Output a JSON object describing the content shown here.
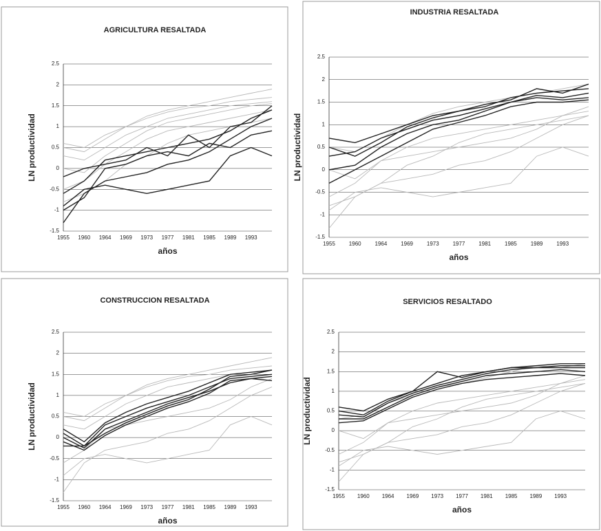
{
  "chart_data": [
    {
      "type": "line",
      "title": "AGRICULTURA RESALTADA",
      "ylabel": "LN productividad",
      "xlabel": "años",
      "categories": [
        "1955",
        "1960",
        "1964",
        "1969",
        "1973",
        "1977",
        "1981",
        "1985",
        "1989",
        "1993",
        null
      ],
      "ylim": [
        -1.5,
        2.5
      ],
      "yticks": [
        -1.5,
        -1,
        -0.5,
        0,
        0.5,
        1,
        1.5,
        2,
        2.5
      ],
      "grid": true,
      "series": [
        {
          "color": "#b8b8b8",
          "values": [
            0.6,
            0.5,
            0.8,
            1.0,
            1.2,
            1.35,
            1.45,
            1.5,
            1.6,
            1.65,
            1.7
          ]
        },
        {
          "color": "#b8b8b8",
          "values": [
            0.3,
            0.2,
            0.5,
            0.8,
            1.0,
            1.2,
            1.3,
            1.4,
            1.5,
            1.55,
            1.6
          ]
        },
        {
          "color": "#b8b8b8",
          "values": [
            0.0,
            -0.1,
            0.3,
            0.6,
            0.9,
            1.1,
            1.2,
            1.3,
            1.4,
            1.5,
            1.55
          ]
        },
        {
          "color": "#b8b8b8",
          "values": [
            -0.5,
            -0.3,
            0.1,
            0.4,
            0.7,
            0.9,
            1.0,
            1.1,
            1.2,
            1.3,
            1.4
          ]
        },
        {
          "color": "#b8b8b8",
          "values": [
            0.5,
            0.4,
            0.7,
            1.0,
            1.25,
            1.4,
            1.5,
            1.6,
            1.7,
            1.8,
            1.9
          ]
        },
        {
          "color": "#b8b8b8",
          "values": [
            -0.8,
            -0.6,
            -0.3,
            0.1,
            0.3,
            0.6,
            0.8,
            0.9,
            1.0,
            1.1,
            1.2
          ]
        },
        {
          "color": "#222222",
          "values": [
            -1.3,
            -0.6,
            -0.3,
            -0.2,
            -0.1,
            0.1,
            0.2,
            0.4,
            0.7,
            1.0,
            1.2
          ]
        },
        {
          "color": "#222222",
          "values": [
            -0.6,
            -0.3,
            0.2,
            0.3,
            0.4,
            0.5,
            0.6,
            0.7,
            0.9,
            1.2,
            1.4
          ]
        },
        {
          "color": "#222222",
          "values": [
            -0.9,
            -0.5,
            -0.4,
            -0.5,
            -0.6,
            -0.5,
            -0.4,
            -0.3,
            0.3,
            0.5,
            0.3
          ]
        },
        {
          "color": "#222222",
          "values": [
            -0.2,
            0.0,
            0.1,
            0.2,
            0.5,
            0.3,
            0.8,
            0.5,
            1.0,
            1.1,
            1.5
          ]
        },
        {
          "color": "#222222",
          "values": [
            -1.0,
            -0.7,
            0.0,
            0.1,
            0.3,
            0.4,
            0.3,
            0.6,
            0.5,
            0.8,
            0.9
          ]
        }
      ]
    },
    {
      "type": "line",
      "title": "INDUSTRIA RESALTADA",
      "ylabel": "LN productividad",
      "xlabel": "años",
      "categories": [
        "1955",
        "1960",
        "1964",
        "1969",
        "1973",
        "1977",
        "1981",
        "1985",
        "1989",
        "1993",
        null
      ],
      "ylim": [
        -1.5,
        2.5
      ],
      "yticks": [
        -1.5,
        -1,
        -0.5,
        0,
        0.5,
        1,
        1.5,
        2,
        2.5
      ],
      "grid": true,
      "series": [
        {
          "color": "#b8b8b8",
          "values": [
            -1.3,
            -0.6,
            -0.3,
            -0.2,
            -0.1,
            0.1,
            0.2,
            0.4,
            0.7,
            1.0,
            1.2
          ]
        },
        {
          "color": "#b8b8b8",
          "values": [
            -0.6,
            -0.3,
            0.2,
            0.3,
            0.4,
            0.5,
            0.6,
            0.7,
            0.9,
            1.2,
            1.4
          ]
        },
        {
          "color": "#b8b8b8",
          "values": [
            -0.9,
            -0.5,
            -0.4,
            -0.5,
            -0.6,
            -0.5,
            -0.4,
            -0.3,
            0.3,
            0.5,
            0.3
          ]
        },
        {
          "color": "#b8b8b8",
          "values": [
            0.5,
            0.4,
            0.7,
            1.0,
            1.25,
            1.4,
            1.5,
            1.6,
            1.7,
            1.8,
            1.9
          ]
        },
        {
          "color": "#b8b8b8",
          "values": [
            0.0,
            -0.2,
            0.2,
            0.5,
            0.7,
            0.8,
            0.9,
            1.0,
            1.1,
            1.2,
            1.3
          ]
        },
        {
          "color": "#b8b8b8",
          "values": [
            -0.8,
            -0.6,
            -0.3,
            0.1,
            0.3,
            0.6,
            0.8,
            0.9,
            1.0,
            1.1,
            1.2
          ]
        },
        {
          "color": "#222222",
          "values": [
            0.7,
            0.6,
            0.8,
            1.0,
            1.2,
            1.3,
            1.4,
            1.6,
            1.7,
            1.75,
            1.8
          ]
        },
        {
          "color": "#222222",
          "values": [
            0.3,
            0.4,
            0.7,
            0.9,
            1.1,
            1.2,
            1.35,
            1.5,
            1.65,
            1.6,
            1.7
          ]
        },
        {
          "color": "#222222",
          "values": [
            0.0,
            0.1,
            0.5,
            0.8,
            1.0,
            1.1,
            1.3,
            1.5,
            1.6,
            1.55,
            1.6
          ]
        },
        {
          "color": "#222222",
          "values": [
            -0.3,
            0.0,
            0.3,
            0.6,
            0.9,
            1.05,
            1.2,
            1.4,
            1.5,
            1.5,
            1.55
          ]
        },
        {
          "color": "#222222",
          "values": [
            0.5,
            0.3,
            0.6,
            0.95,
            1.15,
            1.3,
            1.45,
            1.55,
            1.8,
            1.7,
            1.9
          ]
        }
      ]
    },
    {
      "type": "line",
      "title": "CONSTRUCCION RESALTADA",
      "ylabel": "LN productividad",
      "xlabel": "años",
      "categories": [
        "1955",
        "1960",
        "1964",
        "1969",
        "1973",
        "1977",
        "1981",
        "1985",
        "1989",
        "1993",
        null
      ],
      "ylim": [
        -1.5,
        2.5
      ],
      "yticks": [
        -1.5,
        -1,
        -0.5,
        0,
        0.5,
        1,
        1.5,
        2,
        2.5
      ],
      "grid": true,
      "series": [
        {
          "color": "#b8b8b8",
          "values": [
            0.6,
            0.5,
            0.8,
            1.0,
            1.2,
            1.35,
            1.45,
            1.5,
            1.6,
            1.65,
            1.7
          ]
        },
        {
          "color": "#b8b8b8",
          "values": [
            -1.3,
            -0.6,
            -0.3,
            -0.2,
            -0.1,
            0.1,
            0.2,
            0.4,
            0.7,
            1.0,
            1.2
          ]
        },
        {
          "color": "#b8b8b8",
          "values": [
            -0.9,
            -0.5,
            -0.4,
            -0.5,
            -0.6,
            -0.5,
            -0.4,
            -0.3,
            0.3,
            0.5,
            0.3
          ]
        },
        {
          "color": "#b8b8b8",
          "values": [
            0.5,
            0.4,
            0.7,
            1.0,
            1.25,
            1.4,
            1.5,
            1.6,
            1.7,
            1.8,
            1.9
          ]
        },
        {
          "color": "#b8b8b8",
          "values": [
            0.3,
            0.2,
            0.5,
            0.8,
            1.0,
            1.2,
            1.3,
            1.4,
            1.5,
            1.55,
            1.6
          ]
        },
        {
          "color": "#b8b8b8",
          "values": [
            -0.6,
            -0.3,
            0.2,
            0.3,
            0.4,
            0.5,
            0.6,
            0.7,
            0.9,
            1.2,
            1.4
          ]
        },
        {
          "color": "#222222",
          "values": [
            0.1,
            -0.2,
            0.3,
            0.5,
            0.7,
            0.85,
            1.0,
            1.2,
            1.4,
            1.45,
            1.5
          ]
        },
        {
          "color": "#222222",
          "values": [
            0.0,
            -0.25,
            0.2,
            0.4,
            0.6,
            0.8,
            0.95,
            1.1,
            1.3,
            1.4,
            1.45
          ]
        },
        {
          "color": "#222222",
          "values": [
            -0.2,
            -0.2,
            0.1,
            0.35,
            0.55,
            0.75,
            0.9,
            1.15,
            1.45,
            1.5,
            1.6
          ]
        },
        {
          "color": "#222222",
          "values": [
            0.2,
            -0.1,
            0.35,
            0.6,
            0.8,
            0.95,
            1.1,
            1.3,
            1.5,
            1.55,
            1.6
          ]
        },
        {
          "color": "#222222",
          "values": [
            -0.1,
            -0.3,
            0.05,
            0.3,
            0.5,
            0.7,
            0.85,
            1.05,
            1.35,
            1.4,
            1.35
          ]
        }
      ]
    },
    {
      "type": "line",
      "title": "SERVICIOS RESALTADO",
      "ylabel": "LN productividad",
      "xlabel": "años",
      "categories": [
        "1955",
        "1960",
        "1964",
        "1969",
        "1973",
        "1977",
        "1981",
        "1985",
        "1989",
        "1993",
        null
      ],
      "ylim": [
        -1.5,
        2.5
      ],
      "yticks": [
        -1.5,
        -1,
        -0.5,
        0,
        0.5,
        1,
        1.5,
        2,
        2.5
      ],
      "grid": true,
      "series": [
        {
          "color": "#b8b8b8",
          "values": [
            -1.3,
            -0.6,
            -0.3,
            -0.2,
            -0.1,
            0.1,
            0.2,
            0.4,
            0.7,
            1.0,
            1.2
          ]
        },
        {
          "color": "#b8b8b8",
          "values": [
            -0.6,
            -0.3,
            0.2,
            0.3,
            0.4,
            0.5,
            0.6,
            0.7,
            0.9,
            1.2,
            1.4
          ]
        },
        {
          "color": "#b8b8b8",
          "values": [
            -0.9,
            -0.5,
            -0.4,
            -0.5,
            -0.6,
            -0.5,
            -0.4,
            -0.3,
            0.3,
            0.5,
            0.3
          ]
        },
        {
          "color": "#b8b8b8",
          "values": [
            0.3,
            0.4,
            0.7,
            0.9,
            1.1,
            1.2,
            1.35,
            1.5,
            1.65,
            1.6,
            1.7
          ]
        },
        {
          "color": "#b8b8b8",
          "values": [
            0.0,
            -0.2,
            0.2,
            0.5,
            0.7,
            0.8,
            0.9,
            1.0,
            1.1,
            1.2,
            1.3
          ]
        },
        {
          "color": "#b8b8b8",
          "values": [
            -0.8,
            -0.6,
            -0.3,
            0.1,
            0.3,
            0.6,
            0.8,
            0.9,
            1.0,
            1.1,
            1.2
          ]
        },
        {
          "color": "#222222",
          "values": [
            0.6,
            0.5,
            0.8,
            1.0,
            1.2,
            1.4,
            1.5,
            1.6,
            1.65,
            1.7,
            1.7
          ]
        },
        {
          "color": "#222222",
          "values": [
            0.4,
            0.35,
            0.7,
            0.95,
            1.15,
            1.3,
            1.45,
            1.55,
            1.6,
            1.65,
            1.65
          ]
        },
        {
          "color": "#222222",
          "values": [
            0.3,
            0.3,
            0.6,
            0.9,
            1.1,
            1.25,
            1.4,
            1.45,
            1.5,
            1.55,
            1.5
          ]
        },
        {
          "color": "#222222",
          "values": [
            0.5,
            0.4,
            0.75,
            1.0,
            1.5,
            1.35,
            1.5,
            1.6,
            1.6,
            1.6,
            1.6
          ]
        },
        {
          "color": "#222222",
          "values": [
            0.2,
            0.25,
            0.55,
            0.85,
            1.05,
            1.2,
            1.3,
            1.35,
            1.4,
            1.45,
            1.4
          ]
        }
      ]
    }
  ]
}
